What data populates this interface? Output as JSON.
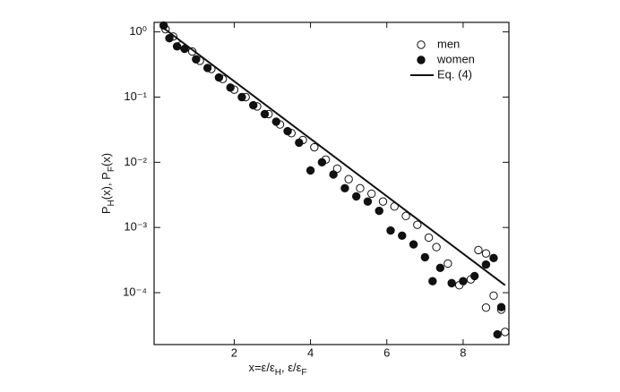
{
  "chart_data": {
    "type": "scatter",
    "x_label_parts": [
      "x=ε/ε",
      "H",
      ",   ε/ε",
      "F"
    ],
    "y_label_parts": [
      "P",
      "H",
      "(x),  P",
      "F",
      "(x)"
    ],
    "xlim": [
      -0.1,
      9.2
    ],
    "xticks": [
      2,
      4,
      6,
      8
    ],
    "ylim": [
      1.4,
      1.6e-05
    ],
    "log_y": true,
    "yticks": [
      {
        "value": 1,
        "label": "10⁰"
      },
      {
        "value": 0.1,
        "label": "10⁻¹"
      },
      {
        "value": 0.01,
        "label": "10⁻²"
      },
      {
        "value": 0.001,
        "label": "10⁻³"
      },
      {
        "value": 0.0001,
        "label": "10⁻⁴"
      }
    ],
    "legend": "top-right",
    "series": [
      {
        "name": "men",
        "color": "#111111",
        "marker": "open",
        "x": [
          0.2,
          0.4,
          0.6,
          0.9,
          1.1,
          1.4,
          1.7,
          2.0,
          2.3,
          2.6,
          2.9,
          3.2,
          3.5,
          3.8,
          4.1,
          4.4,
          4.7,
          5.0,
          5.3,
          5.6,
          5.9,
          6.2,
          6.5,
          6.8,
          7.1,
          7.3,
          7.6,
          7.9,
          8.2,
          8.4,
          8.6,
          8.6,
          8.8,
          9.0,
          9.1
        ],
        "values": [
          1.1,
          0.85,
          0.62,
          0.5,
          0.36,
          0.27,
          0.19,
          0.13,
          0.1,
          0.072,
          0.055,
          0.038,
          0.028,
          0.022,
          0.017,
          0.011,
          0.008,
          0.0055,
          0.004,
          0.0033,
          0.0025,
          0.0021,
          0.0015,
          0.0011,
          0.0007,
          0.0005,
          0.00028,
          0.00013,
          0.00016,
          0.00045,
          0.0004,
          5.9e-05,
          9e-05,
          5.5e-05,
          2.5e-05
        ]
      },
      {
        "name": "women",
        "color": "#111111",
        "marker": "filled",
        "x": [
          0.15,
          0.3,
          0.5,
          0.7,
          1.0,
          1.3,
          1.6,
          1.9,
          2.2,
          2.5,
          2.8,
          3.1,
          3.4,
          3.7,
          4.0,
          4.3,
          4.6,
          4.9,
          5.2,
          5.5,
          5.8,
          6.1,
          6.4,
          6.7,
          7.0,
          7.2,
          7.4,
          7.7,
          8.0,
          8.3,
          8.6,
          8.8,
          8.9,
          9.0
        ],
        "values": [
          1.25,
          0.8,
          0.6,
          0.55,
          0.38,
          0.28,
          0.2,
          0.14,
          0.1,
          0.075,
          0.055,
          0.042,
          0.03,
          0.02,
          0.0075,
          0.01,
          0.0065,
          0.004,
          0.003,
          0.0025,
          0.0018,
          0.0009,
          0.00075,
          0.00055,
          0.00035,
          0.00015,
          0.00024,
          0.00014,
          0.00015,
          0.00018,
          0.00027,
          0.00034,
          2.3e-05,
          6e-05
        ]
      },
      {
        "name": "Eq. (4)",
        "color": "#111111",
        "marker": "line",
        "x": [
          0.1,
          9.1
        ],
        "values": [
          1.2,
          0.00013
        ]
      }
    ]
  }
}
